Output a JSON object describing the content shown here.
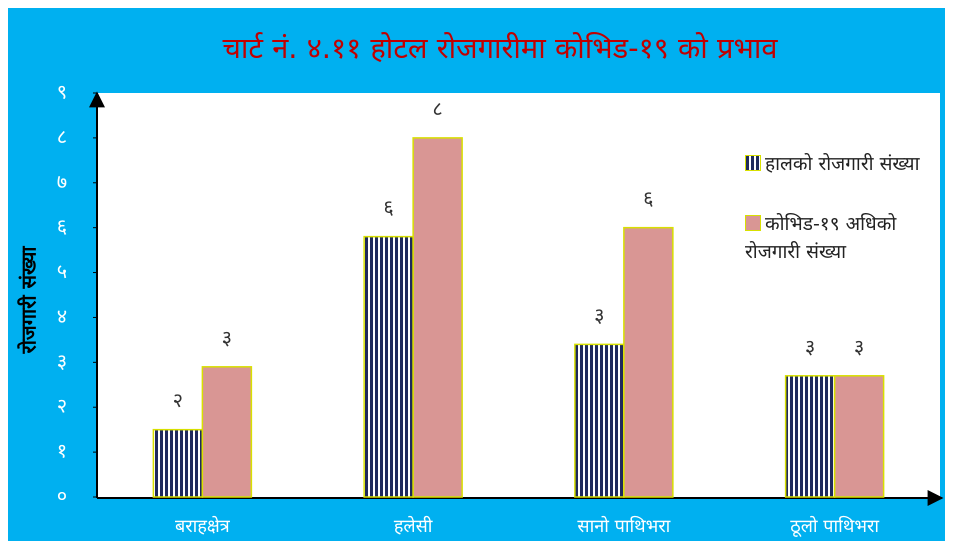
{
  "chart_data": {
    "type": "bar",
    "title": "चार्ट नं. ४.११ होटल रोजगारीमा कोभिड-१९ को प्रभाव",
    "y_label": "रोजगारी संख्या",
    "categories": [
      "बराहक्षेत्र",
      "हलेसी",
      "सानो पाथिभरा",
      "ठूलो पाथिभरा"
    ],
    "series": [
      {
        "name": "हालको रोजगारी संख्या",
        "color": "#1f2a5c",
        "values": [
          1.5,
          5.8,
          3.4,
          2.7
        ],
        "value_labels": [
          "२",
          "६",
          "३",
          "३"
        ]
      },
      {
        "name": "कोभिड-१९ अधिको रोजगारी संख्या",
        "color": "#d99694",
        "values": [
          2.9,
          8.0,
          6.0,
          2.7
        ],
        "value_labels": [
          "३",
          "८",
          "६",
          "३"
        ]
      }
    ],
    "ylim": [
      0,
      9
    ],
    "yticks": [
      {
        "value": 0,
        "label": "०"
      },
      {
        "value": 1,
        "label": "१"
      },
      {
        "value": 2,
        "label": "२"
      },
      {
        "value": 3,
        "label": "३"
      },
      {
        "value": 4,
        "label": "४"
      },
      {
        "value": 5,
        "label": "५"
      },
      {
        "value": 6,
        "label": "६"
      },
      {
        "value": 7,
        "label": "७"
      },
      {
        "value": 8,
        "label": "८"
      },
      {
        "value": 9,
        "label": "९"
      }
    ],
    "grid": false,
    "legend": "right"
  }
}
